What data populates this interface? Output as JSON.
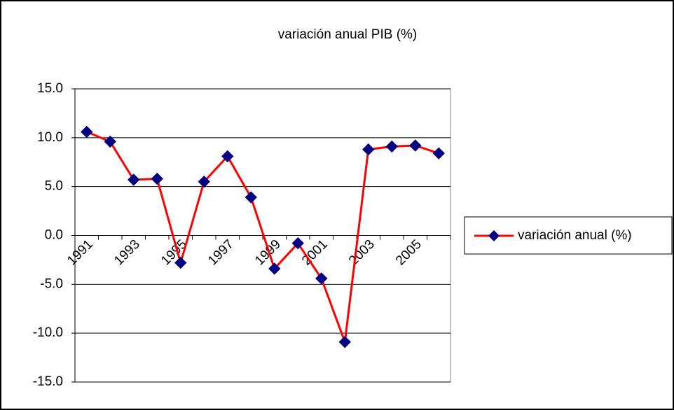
{
  "chart_data": {
    "type": "line",
    "title": "variación anual PIB (%)",
    "categories": [
      "1991",
      null,
      "1993",
      null,
      "1995",
      null,
      "1997",
      null,
      "1999",
      null,
      "2001",
      null,
      "2003",
      null,
      "2005",
      null
    ],
    "series": [
      {
        "name": "variación anual (%)",
        "color": "#ff0000",
        "marker_color": "#000080",
        "values": [
          10.6,
          9.6,
          5.7,
          5.8,
          -2.8,
          5.5,
          8.1,
          3.9,
          -3.4,
          -0.8,
          -4.4,
          -10.9,
          8.8,
          9.1,
          9.2,
          8.4
        ]
      }
    ],
    "ylim": [
      -15,
      15
    ],
    "yticks": [
      {
        "value": -15,
        "label": "-15.0"
      },
      {
        "value": -10,
        "label": "-10.0"
      },
      {
        "value": -5,
        "label": "-5.0"
      },
      {
        "value": 0,
        "label": "0.0"
      },
      {
        "value": 5,
        "label": "5.0"
      },
      {
        "value": 10,
        "label": "10.0"
      },
      {
        "value": 15,
        "label": "15.0"
      }
    ],
    "grid": true,
    "legend": "right"
  }
}
